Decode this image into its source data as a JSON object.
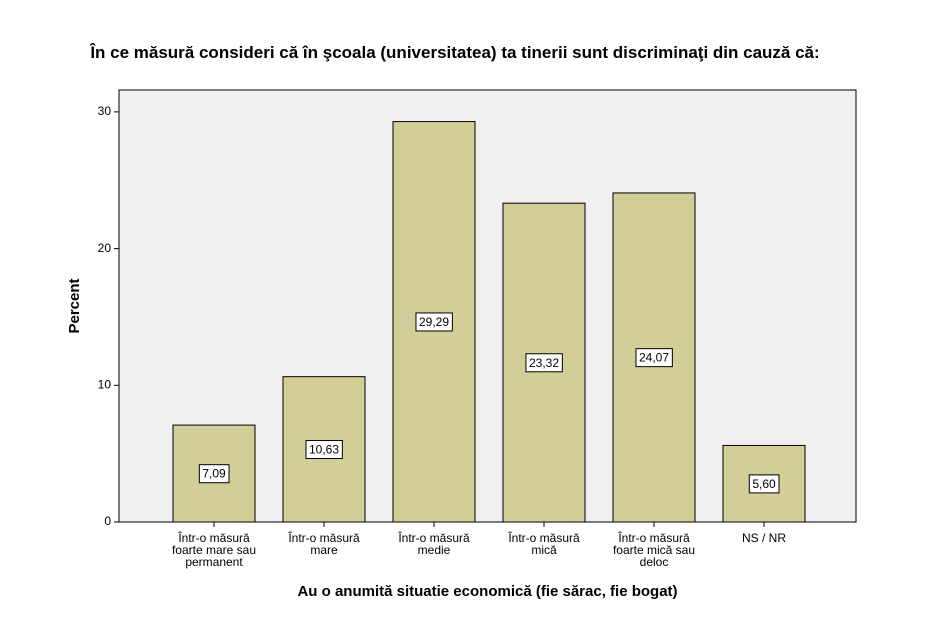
{
  "chart_data": {
    "type": "bar",
    "title": "În ce măsură consideri că în şcoala (universitatea) ta tinerii sunt discriminaţi din cauză că:",
    "x_label": "Au o anumită situatie economică (fie sărac, fie bogat)",
    "y_label": "Percent",
    "categories": [
      "Într-o măsură foarte mare sau permanent",
      "Într-o măsură mare",
      "Într-o măsură medie",
      "Într-o măsură mică",
      "Într-o măsură foarte mică sau deloc",
      "NS / NR"
    ],
    "values": [
      7.09,
      10.63,
      29.29,
      23.32,
      24.07,
      5.6
    ],
    "value_labels": [
      "7,09",
      "10,63",
      "29,29",
      "23,32",
      "24,07",
      "5,60"
    ],
    "color": "#d3ce97",
    "ylim": [
      0,
      31.6
    ],
    "yticks": [
      0,
      10,
      20,
      30
    ],
    "grid": false
  }
}
